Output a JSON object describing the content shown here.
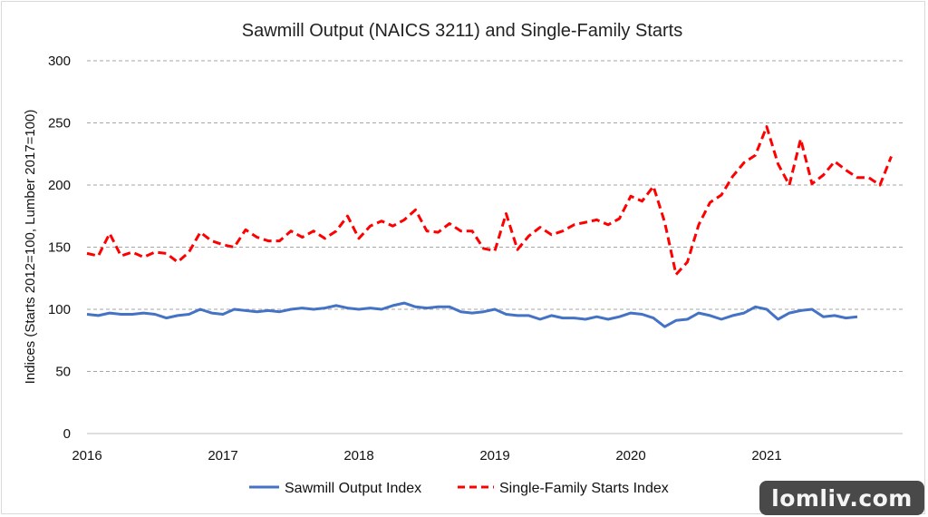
{
  "chart_data": {
    "type": "line",
    "title": "Sawmill Output (NAICS 3211) and Single-Family Starts",
    "xlabel": "",
    "ylabel": "Indices (Starts 2012=100, Lumber 2017=100)",
    "ylim": [
      0,
      300
    ],
    "yticks": [
      0,
      50,
      100,
      150,
      200,
      250,
      300
    ],
    "xlim": [
      2016,
      2022.0
    ],
    "xticks": [
      2016,
      2017,
      2018,
      2019,
      2020,
      2021
    ],
    "grid": "horizontal",
    "legend_position": "bottom",
    "series": [
      {
        "name": "Sawmill Output Index",
        "color": "#4472c4",
        "style": "solid",
        "start": 2016,
        "step_months": 1,
        "values": [
          96,
          95,
          97,
          96,
          96,
          97,
          96,
          93,
          95,
          96,
          100,
          97,
          96,
          100,
          99,
          98,
          99,
          98,
          100,
          101,
          100,
          101,
          103,
          101,
          100,
          101,
          100,
          103,
          105,
          102,
          101,
          102,
          102,
          98,
          97,
          98,
          100,
          96,
          95,
          95,
          92,
          95,
          93,
          93,
          92,
          94,
          92,
          94,
          97,
          96,
          93,
          86,
          91,
          92,
          97,
          95,
          92,
          95,
          97,
          102,
          100,
          92,
          97,
          99,
          100,
          94,
          95,
          93,
          94
        ]
      },
      {
        "name": "Single-Family Starts Index",
        "color": "#ff0000",
        "style": "dashed",
        "start": 2016,
        "step_months": 1,
        "values": [
          145,
          143,
          161,
          143,
          146,
          142,
          146,
          145,
          138,
          146,
          162,
          155,
          152,
          150,
          164,
          158,
          155,
          155,
          163,
          158,
          163,
          157,
          163,
          175,
          157,
          167,
          171,
          167,
          172,
          180,
          163,
          162,
          169,
          163,
          163,
          149,
          147,
          177,
          148,
          159,
          166,
          160,
          163,
          168,
          170,
          172,
          168,
          173,
          191,
          187,
          199,
          170,
          128,
          138,
          168,
          186,
          192,
          207,
          218,
          224,
          247,
          217,
          200,
          237,
          201,
          208,
          219,
          212,
          206,
          206,
          200,
          223
        ]
      }
    ]
  },
  "watermark": {
    "text": "lomliv.com"
  }
}
